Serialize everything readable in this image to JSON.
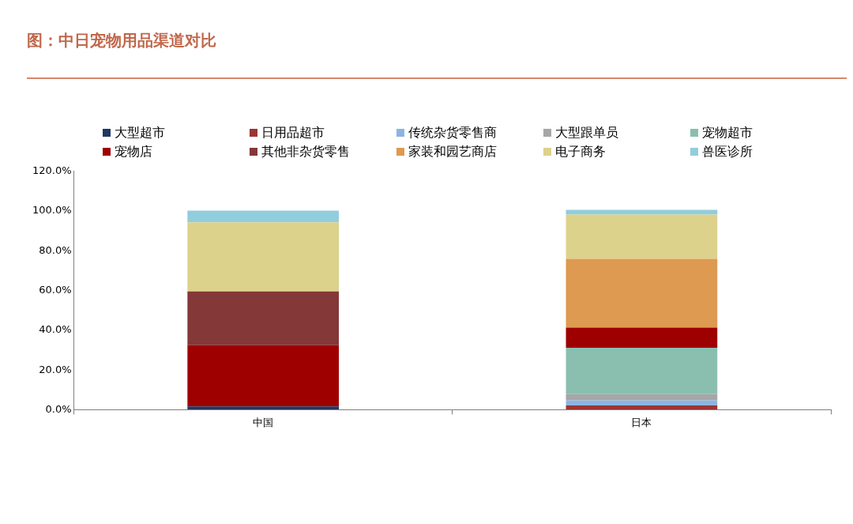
{
  "chart_data": {
    "type": "bar",
    "title": "图：中日宠物用品渠道对比",
    "categories": [
      "中国",
      "日本"
    ],
    "stacked": true,
    "series": [
      {
        "name": "大型超市",
        "color": "#1f3864",
        "values": [
          1.7,
          0
        ]
      },
      {
        "name": "日用品超市",
        "color": "#9b3535",
        "values": [
          0,
          2.1
        ]
      },
      {
        "name": "传统杂货零售商",
        "color": "#8db4e2",
        "values": [
          0,
          2.6
        ]
      },
      {
        "name": "大型跟单员",
        "color": "#a6a6a6",
        "values": [
          0,
          3.1
        ]
      },
      {
        "name": "宠物超市",
        "color": "#8abfb0",
        "values": [
          0,
          23.4
        ]
      },
      {
        "name": "宠物店",
        "color": "#9e0000",
        "values": [
          30.8,
          10.1
        ]
      },
      {
        "name": "其他非杂货零售",
        "color": "#843838",
        "values": [
          27.0,
          0
        ]
      },
      {
        "name": "家装和园艺商店",
        "color": "#dd9a50",
        "values": [
          0,
          34.7
        ]
      },
      {
        "name": "电子商务",
        "color": "#dcd28c",
        "values": [
          34.9,
          22.2
        ]
      },
      {
        "name": "兽医诊所",
        "color": "#92cddc",
        "values": [
          5.8,
          2.4
        ]
      }
    ],
    "ylim": [
      0,
      120
    ],
    "yticks": [
      {
        "value": 0,
        "label": "0.0%"
      },
      {
        "value": 20,
        "label": "20.0%"
      },
      {
        "value": 40,
        "label": "40.0%"
      },
      {
        "value": 60,
        "label": "60.0%"
      },
      {
        "value": 80,
        "label": "80.0%"
      },
      {
        "value": 100,
        "label": "100.0%"
      },
      {
        "value": 120,
        "label": "120.0%"
      }
    ],
    "grid": false,
    "legend": "top"
  }
}
